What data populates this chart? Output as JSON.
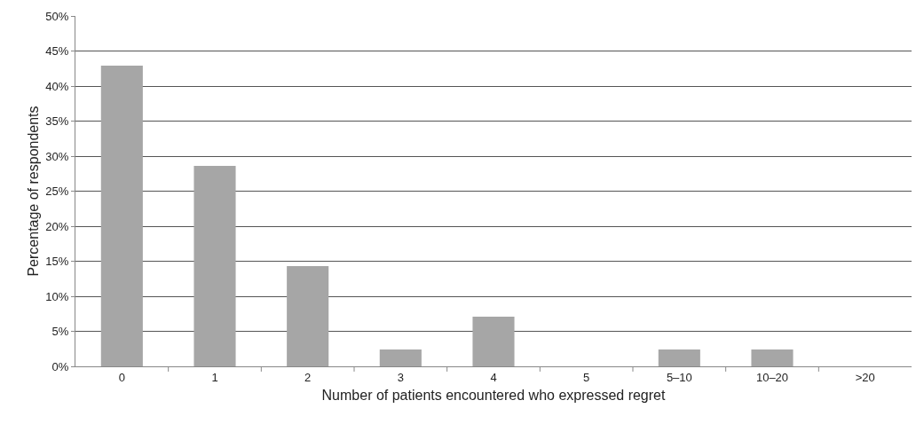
{
  "chart_data": {
    "type": "bar",
    "xlabel": "Number of patients encountered who expressed regret",
    "ylabel": "Percentage of respondents",
    "categories": [
      "0",
      "1",
      "2",
      "3",
      "4",
      "5",
      "5–10",
      "10–20",
      ">20"
    ],
    "values": [
      42.9,
      28.6,
      14.3,
      2.4,
      7.1,
      0,
      2.4,
      2.4,
      0
    ],
    "color": "#a6a6a6",
    "ylim": [
      0,
      50
    ],
    "yticks": [
      {
        "value": 0,
        "label": "0%"
      },
      {
        "value": 5,
        "label": "5%"
      },
      {
        "value": 10,
        "label": "10%"
      },
      {
        "value": 15,
        "label": "15%"
      },
      {
        "value": 20,
        "label": "20%"
      },
      {
        "value": 25,
        "label": "25%"
      },
      {
        "value": 30,
        "label": "30%"
      },
      {
        "value": 35,
        "label": "35%"
      },
      {
        "value": 40,
        "label": "40%"
      },
      {
        "value": 45,
        "label": "45%"
      },
      {
        "value": 50,
        "label": "50%"
      }
    ],
    "grid": "y"
  }
}
